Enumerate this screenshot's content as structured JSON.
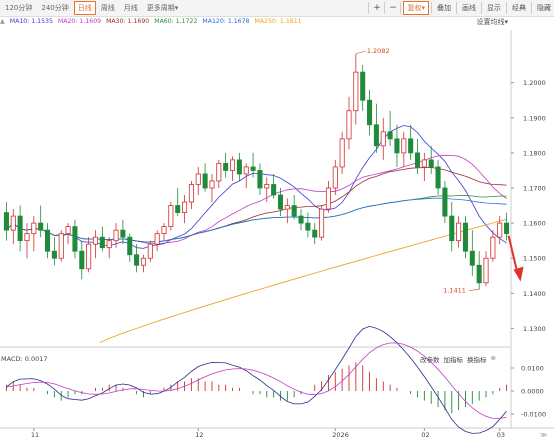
{
  "toolbar": {
    "tabs": [
      "120分钟",
      "240分钟",
      "日线",
      "周线",
      "月线",
      "更多周期"
    ],
    "active_tab": "日线",
    "more_arrow": "▾",
    "tools": [
      "+",
      "−",
      "复权",
      "叠加",
      "画线",
      "显示",
      "经典",
      "隐藏"
    ],
    "fuquan_arrow": "▾"
  },
  "ma_labels": [
    {
      "text": "MA10: 1.1535",
      "color": "#3a3ad6"
    },
    {
      "text": "MA20: 1.1609",
      "color": "#c03cc8"
    },
    {
      "text": "MA30: 1.1690",
      "color": "#9b2a2a"
    },
    {
      "text": "MA60: 1.1722",
      "color": "#2f8f2f"
    },
    {
      "text": "MA120: 1.1678",
      "color": "#2a6fd6"
    },
    {
      "text": "MA250: 1.1611",
      "color": "#f0a020"
    }
  ],
  "ma_prefix": "▲",
  "settings_label": "设置均线",
  "settings_arrow": "▾",
  "price_axis": [
    "1.2000",
    "1.1900",
    "1.1800",
    "1.1700",
    "1.1600",
    "1.1500",
    "1.1400",
    "1.1300"
  ],
  "high_label": "1.2082",
  "low_label": "1.1411",
  "macd": {
    "label": "MACD: 0.0017",
    "buttons": [
      "改参数",
      "加指标",
      "换指标"
    ],
    "close": "⊗",
    "axis": [
      "0.0100",
      "0.0000",
      "-0.0100"
    ]
  },
  "x_axis": [
    "11",
    "12",
    "2026",
    "02",
    "03"
  ],
  "colors": {
    "up": "#d12f2f",
    "down": "#1f8a3a",
    "accent": "#e8732e"
  },
  "chart_data": {
    "type": "candlestick",
    "ylim": [
      1.125,
      1.215
    ],
    "candles": [
      [
        1.163,
        1.166,
        1.155,
        1.158
      ],
      [
        1.158,
        1.164,
        1.154,
        1.162
      ],
      [
        1.162,
        1.165,
        1.152,
        1.155
      ],
      [
        1.155,
        1.16,
        1.15,
        1.157
      ],
      [
        1.157,
        1.162,
        1.152,
        1.16
      ],
      [
        1.16,
        1.165,
        1.156,
        1.158
      ],
      [
        1.158,
        1.16,
        1.15,
        1.152
      ],
      [
        1.152,
        1.156,
        1.148,
        1.15
      ],
      [
        1.15,
        1.158,
        1.149,
        1.157
      ],
      [
        1.157,
        1.16,
        1.154,
        1.159
      ],
      [
        1.159,
        1.161,
        1.15,
        1.152
      ],
      [
        1.152,
        1.155,
        1.144,
        1.147
      ],
      [
        1.147,
        1.156,
        1.146,
        1.154
      ],
      [
        1.154,
        1.158,
        1.15,
        1.156
      ],
      [
        1.156,
        1.159,
        1.152,
        1.153
      ],
      [
        1.153,
        1.156,
        1.15,
        1.155
      ],
      [
        1.155,
        1.16,
        1.153,
        1.158
      ],
      [
        1.158,
        1.161,
        1.154,
        1.156
      ],
      [
        1.156,
        1.157,
        1.149,
        1.151
      ],
      [
        1.151,
        1.154,
        1.146,
        1.148
      ],
      [
        1.148,
        1.151,
        1.146,
        1.15
      ],
      [
        1.15,
        1.155,
        1.149,
        1.154
      ],
      [
        1.154,
        1.158,
        1.152,
        1.157
      ],
      [
        1.157,
        1.16,
        1.155,
        1.159
      ],
      [
        1.159,
        1.166,
        1.158,
        1.165
      ],
      [
        1.165,
        1.17,
        1.162,
        1.163
      ],
      [
        1.163,
        1.168,
        1.16,
        1.166
      ],
      [
        1.166,
        1.172,
        1.164,
        1.171
      ],
      [
        1.171,
        1.176,
        1.168,
        1.174
      ],
      [
        1.174,
        1.177,
        1.169,
        1.17
      ],
      [
        1.17,
        1.174,
        1.166,
        1.172
      ],
      [
        1.172,
        1.178,
        1.17,
        1.177
      ],
      [
        1.177,
        1.18,
        1.173,
        1.175
      ],
      [
        1.175,
        1.179,
        1.172,
        1.178
      ],
      [
        1.178,
        1.18,
        1.172,
        1.174
      ],
      [
        1.174,
        1.177,
        1.17,
        1.176
      ],
      [
        1.176,
        1.18,
        1.173,
        1.175
      ],
      [
        1.175,
        1.177,
        1.168,
        1.17
      ],
      [
        1.17,
        1.173,
        1.166,
        1.171
      ],
      [
        1.171,
        1.174,
        1.167,
        1.168
      ],
      [
        1.168,
        1.17,
        1.162,
        1.164
      ],
      [
        1.164,
        1.167,
        1.16,
        1.165
      ],
      [
        1.165,
        1.168,
        1.161,
        1.162
      ],
      [
        1.162,
        1.164,
        1.158,
        1.16
      ],
      [
        1.16,
        1.163,
        1.156,
        1.158
      ],
      [
        1.158,
        1.16,
        1.154,
        1.156
      ],
      [
        1.156,
        1.165,
        1.155,
        1.164
      ],
      [
        1.164,
        1.172,
        1.163,
        1.17
      ],
      [
        1.17,
        1.178,
        1.168,
        1.176
      ],
      [
        1.176,
        1.186,
        1.174,
        1.184
      ],
      [
        1.184,
        1.196,
        1.181,
        1.192
      ],
      [
        1.192,
        1.2082,
        1.188,
        1.203
      ],
      [
        1.203,
        1.205,
        1.192,
        1.195
      ],
      [
        1.195,
        1.198,
        1.185,
        1.188
      ],
      [
        1.188,
        1.194,
        1.18,
        1.182
      ],
      [
        1.182,
        1.19,
        1.178,
        1.186
      ],
      [
        1.186,
        1.192,
        1.182,
        1.184
      ],
      [
        1.184,
        1.188,
        1.176,
        1.18
      ],
      [
        1.18,
        1.186,
        1.176,
        1.184
      ],
      [
        1.184,
        1.188,
        1.178,
        1.18
      ],
      [
        1.18,
        1.184,
        1.174,
        1.176
      ],
      [
        1.176,
        1.18,
        1.172,
        1.178
      ],
      [
        1.178,
        1.182,
        1.174,
        1.176
      ],
      [
        1.176,
        1.178,
        1.168,
        1.17
      ],
      [
        1.17,
        1.172,
        1.16,
        1.162
      ],
      [
        1.162,
        1.166,
        1.152,
        1.155
      ],
      [
        1.155,
        1.162,
        1.153,
        1.16
      ],
      [
        1.16,
        1.162,
        1.15,
        1.152
      ],
      [
        1.152,
        1.158,
        1.145,
        1.148
      ],
      [
        1.148,
        1.152,
        1.1411,
        1.143
      ],
      [
        1.143,
        1.152,
        1.142,
        1.15
      ],
      [
        1.15,
        1.158,
        1.149,
        1.156
      ],
      [
        1.156,
        1.162,
        1.154,
        1.16
      ],
      [
        1.16,
        1.163,
        1.155,
        1.157
      ]
    ],
    "macd_hist": [
      2,
      3,
      2,
      1,
      1,
      0,
      -1,
      -2,
      -3,
      -2,
      -1,
      -1,
      0,
      1,
      1,
      2,
      2,
      1,
      0,
      -1,
      -2,
      -1,
      0,
      1,
      2,
      3,
      3,
      4,
      4,
      3,
      3,
      2,
      2,
      1,
      1,
      0,
      -1,
      -1,
      -2,
      -2,
      -3,
      -3,
      -2,
      -1,
      0,
      2,
      3,
      5,
      6,
      7,
      8,
      9,
      8,
      6,
      4,
      3,
      2,
      1,
      0,
      -1,
      -2,
      -3,
      -4,
      -5,
      -6,
      -7,
      -6,
      -5,
      -4,
      -3,
      -2,
      -1,
      1,
      2
    ],
    "x_ticks": [
      "11",
      "12",
      "2026",
      "02",
      "03"
    ]
  }
}
